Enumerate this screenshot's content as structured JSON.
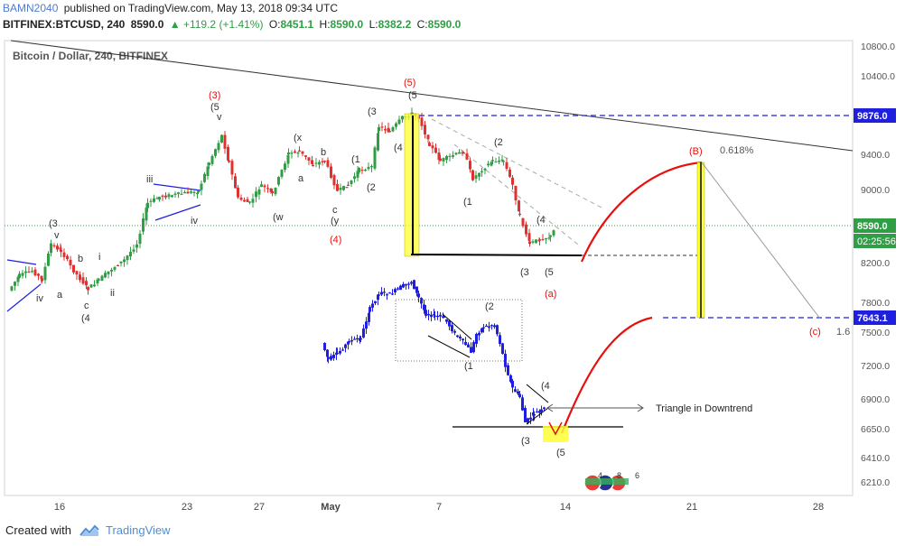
{
  "header": {
    "user": "BAMN2040",
    "published": "published on TradingView.com, May 13, 2018 09:34 UTC",
    "symbol": "BITFINEX:BTCUSD, 240",
    "last": "8590.0",
    "change": "▲ +119.2 (+1.41%)",
    "o_label": "O:",
    "o_val": "8451.1",
    "h_label": "H:",
    "h_val": "8590.0",
    "l_label": "L:",
    "l_val": "8382.2",
    "c_label": "C:",
    "c_val": "8590.0"
  },
  "footer": {
    "created_with": "Created with",
    "brand": "TradingView"
  },
  "colors": {
    "up": "#2f9e44",
    "down": "#e03131",
    "blue": "#1f1fe0",
    "red": "#e8100c",
    "yellow": "#ffff33",
    "badge_green": "#31b45b",
    "badge_red": "#ef3a3a",
    "badge_blue": "#2e3192"
  },
  "chart_data": {
    "type": "candlestick",
    "title": "Bitcoin / Dollar, 240, BITFINEX",
    "yticks": [
      "10800.0",
      "10400.0",
      "9400.0",
      "9000.0",
      "8200.0",
      "7800.0",
      "7500.0",
      "7200.0",
      "6900.0",
      "6650.0",
      "6410.0",
      "6210.0"
    ],
    "xticks": [
      "16",
      "23",
      "27",
      "May",
      "7",
      "14",
      "21",
      "28"
    ],
    "price_labels": {
      "p9876": "9876.0",
      "last": "8590.0",
      "countdown": "02:25:56",
      "p7643": "7643.1"
    },
    "annotations": {
      "w3_red": "(3)",
      "w5_red": "(5)",
      "w4_red": "(4)",
      "a_red": "(a)",
      "B_red": "(B)",
      "c_red": "(c)",
      "fib": "0.618%",
      "ext": "1.6",
      "triangle": "Triangle in Downtrend",
      "l_3a": "(3",
      "l_v1": "v",
      "l_b1": "b",
      "l_i1": "i",
      "l_iv1": "iv",
      "l_a1": "a",
      "l_c1": "c",
      "l_ii1": "ii",
      "l_4a": "(4",
      "l_iii": "iii",
      "l_iv2": "iv",
      "l_5a": "(5",
      "l_v2": "v",
      "l_w": "(w",
      "l_x": "(x",
      "l_b2": "b",
      "l_a2": "a",
      "l_c2": "c",
      "l_y": "(y",
      "l_1a": "(1",
      "l_2a": "(2",
      "l_3b": "(3",
      "l_4b": "(4",
      "l_5b": "(5",
      "l_1b": "(1",
      "l_2b": "(2",
      "l_4c": "(4",
      "l_3c": "(3",
      "l_5c": "(5",
      "l_1d": "(1",
      "l_2d": "(2",
      "l_3d": "(3",
      "l_4d": "(4",
      "l_5d": "(5"
    },
    "badges": [
      "4",
      "8",
      "6"
    ]
  }
}
